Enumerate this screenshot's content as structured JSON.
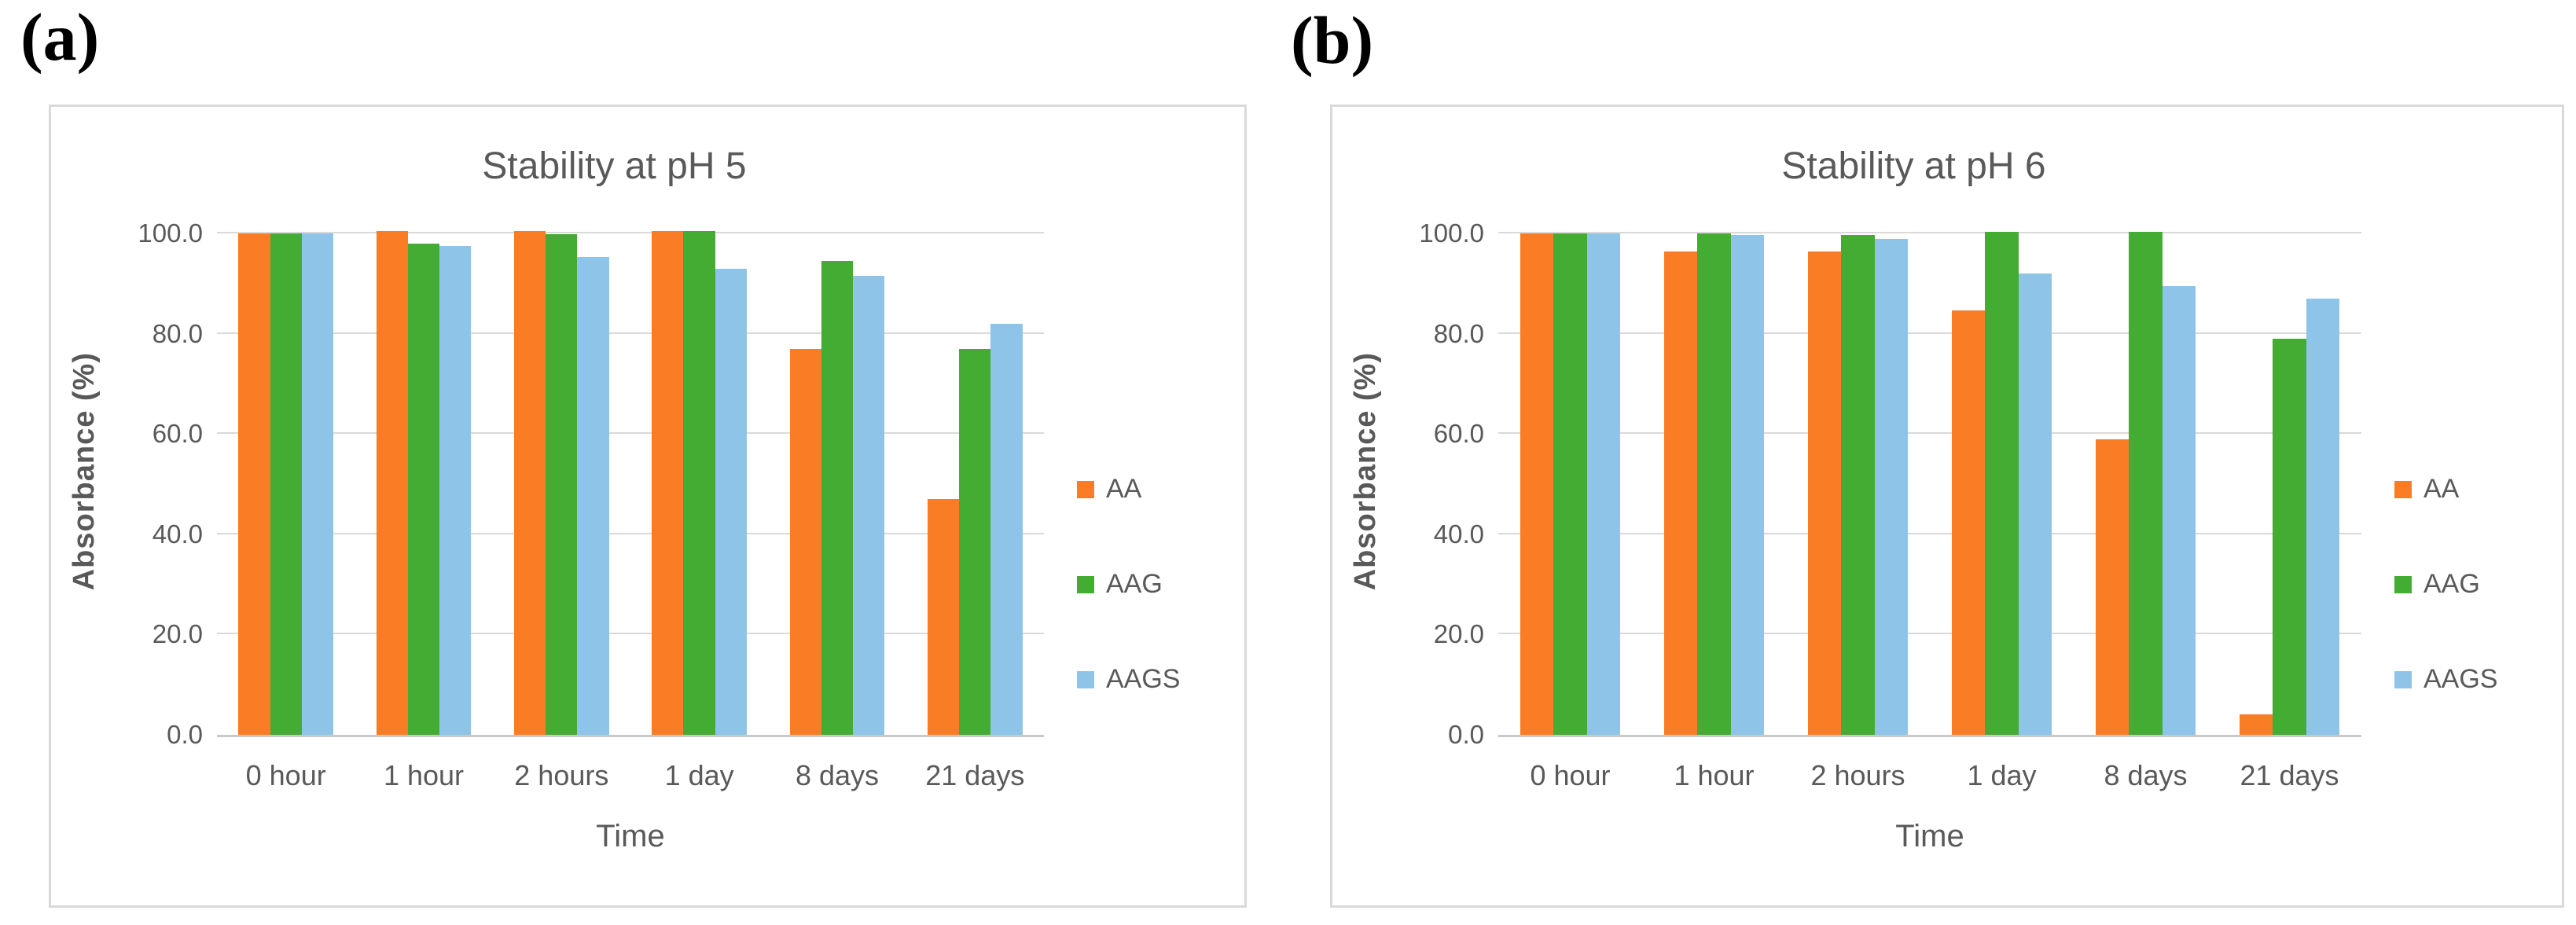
{
  "page": {
    "background": "#FFFFFF"
  },
  "panels": [
    {
      "label": "(a)"
    },
    {
      "label": "(b)"
    }
  ],
  "colors": {
    "text_gray": "#595959",
    "gridline": "#D9D9D9",
    "axis_line": "#C9C9C9",
    "panel_border": "#D9D9D9"
  },
  "chart_data": [
    {
      "type": "bar",
      "title": "Stability at pH 5",
      "xlabel": "Time",
      "ylabel": "Absorbance (%)",
      "categories": [
        "0 hour",
        "1 hour",
        "2 hours",
        "1 day",
        "8 days",
        "21 days"
      ],
      "series": [
        {
          "name": "AA",
          "color": "#FA7D26",
          "values": [
            100.0,
            100.4,
            100.4,
            100.4,
            77.0,
            47.0
          ]
        },
        {
          "name": "AAG",
          "color": "#44AB33",
          "values": [
            100.0,
            98.0,
            99.8,
            100.4,
            94.5,
            77.0
          ]
        },
        {
          "name": "AAGS",
          "color": "#8DC4E8",
          "values": [
            100.0,
            97.5,
            95.3,
            93.0,
            91.5,
            82.0
          ]
        }
      ],
      "ylim": [
        0,
        100
      ],
      "yticks": [
        {
          "value": 0,
          "label": "0.0"
        },
        {
          "value": 20,
          "label": "20.0"
        },
        {
          "value": 40,
          "label": "40.0"
        },
        {
          "value": 60,
          "label": "60.0"
        },
        {
          "value": 80,
          "label": "80.0"
        },
        {
          "value": 100,
          "label": "100.0"
        }
      ],
      "grid": true,
      "legend_position": "right",
      "legend_entries": [
        "AA",
        "AAG",
        "AAGS"
      ]
    },
    {
      "type": "bar",
      "title": "Stability at pH 6",
      "xlabel": "Time",
      "ylabel": "Absorbance (%)",
      "categories": [
        "0 hour",
        "1 hour",
        "2 hours",
        "1 day",
        "8 days",
        "21 days"
      ],
      "series": [
        {
          "name": "AA",
          "color": "#FA7D26",
          "values": [
            100.0,
            96.4,
            96.4,
            84.6,
            59.0,
            4.0
          ]
        },
        {
          "name": "AAG",
          "color": "#44AB33",
          "values": [
            100.0,
            100.0,
            99.7,
            100.3,
            100.3,
            79.0
          ]
        },
        {
          "name": "AAGS",
          "color": "#8DC4E8",
          "values": [
            100.0,
            99.6,
            98.9,
            92.0,
            89.5,
            87.0
          ]
        }
      ],
      "ylim": [
        0,
        100
      ],
      "yticks": [
        {
          "value": 0,
          "label": "0.0"
        },
        {
          "value": 20,
          "label": "20.0"
        },
        {
          "value": 40,
          "label": "40.0"
        },
        {
          "value": 60,
          "label": "60.0"
        },
        {
          "value": 80,
          "label": "80.0"
        },
        {
          "value": 100,
          "label": "100.0"
        }
      ],
      "grid": true,
      "legend_position": "right",
      "legend_entries": [
        "AA",
        "AAG",
        "AAGS"
      ]
    }
  ]
}
